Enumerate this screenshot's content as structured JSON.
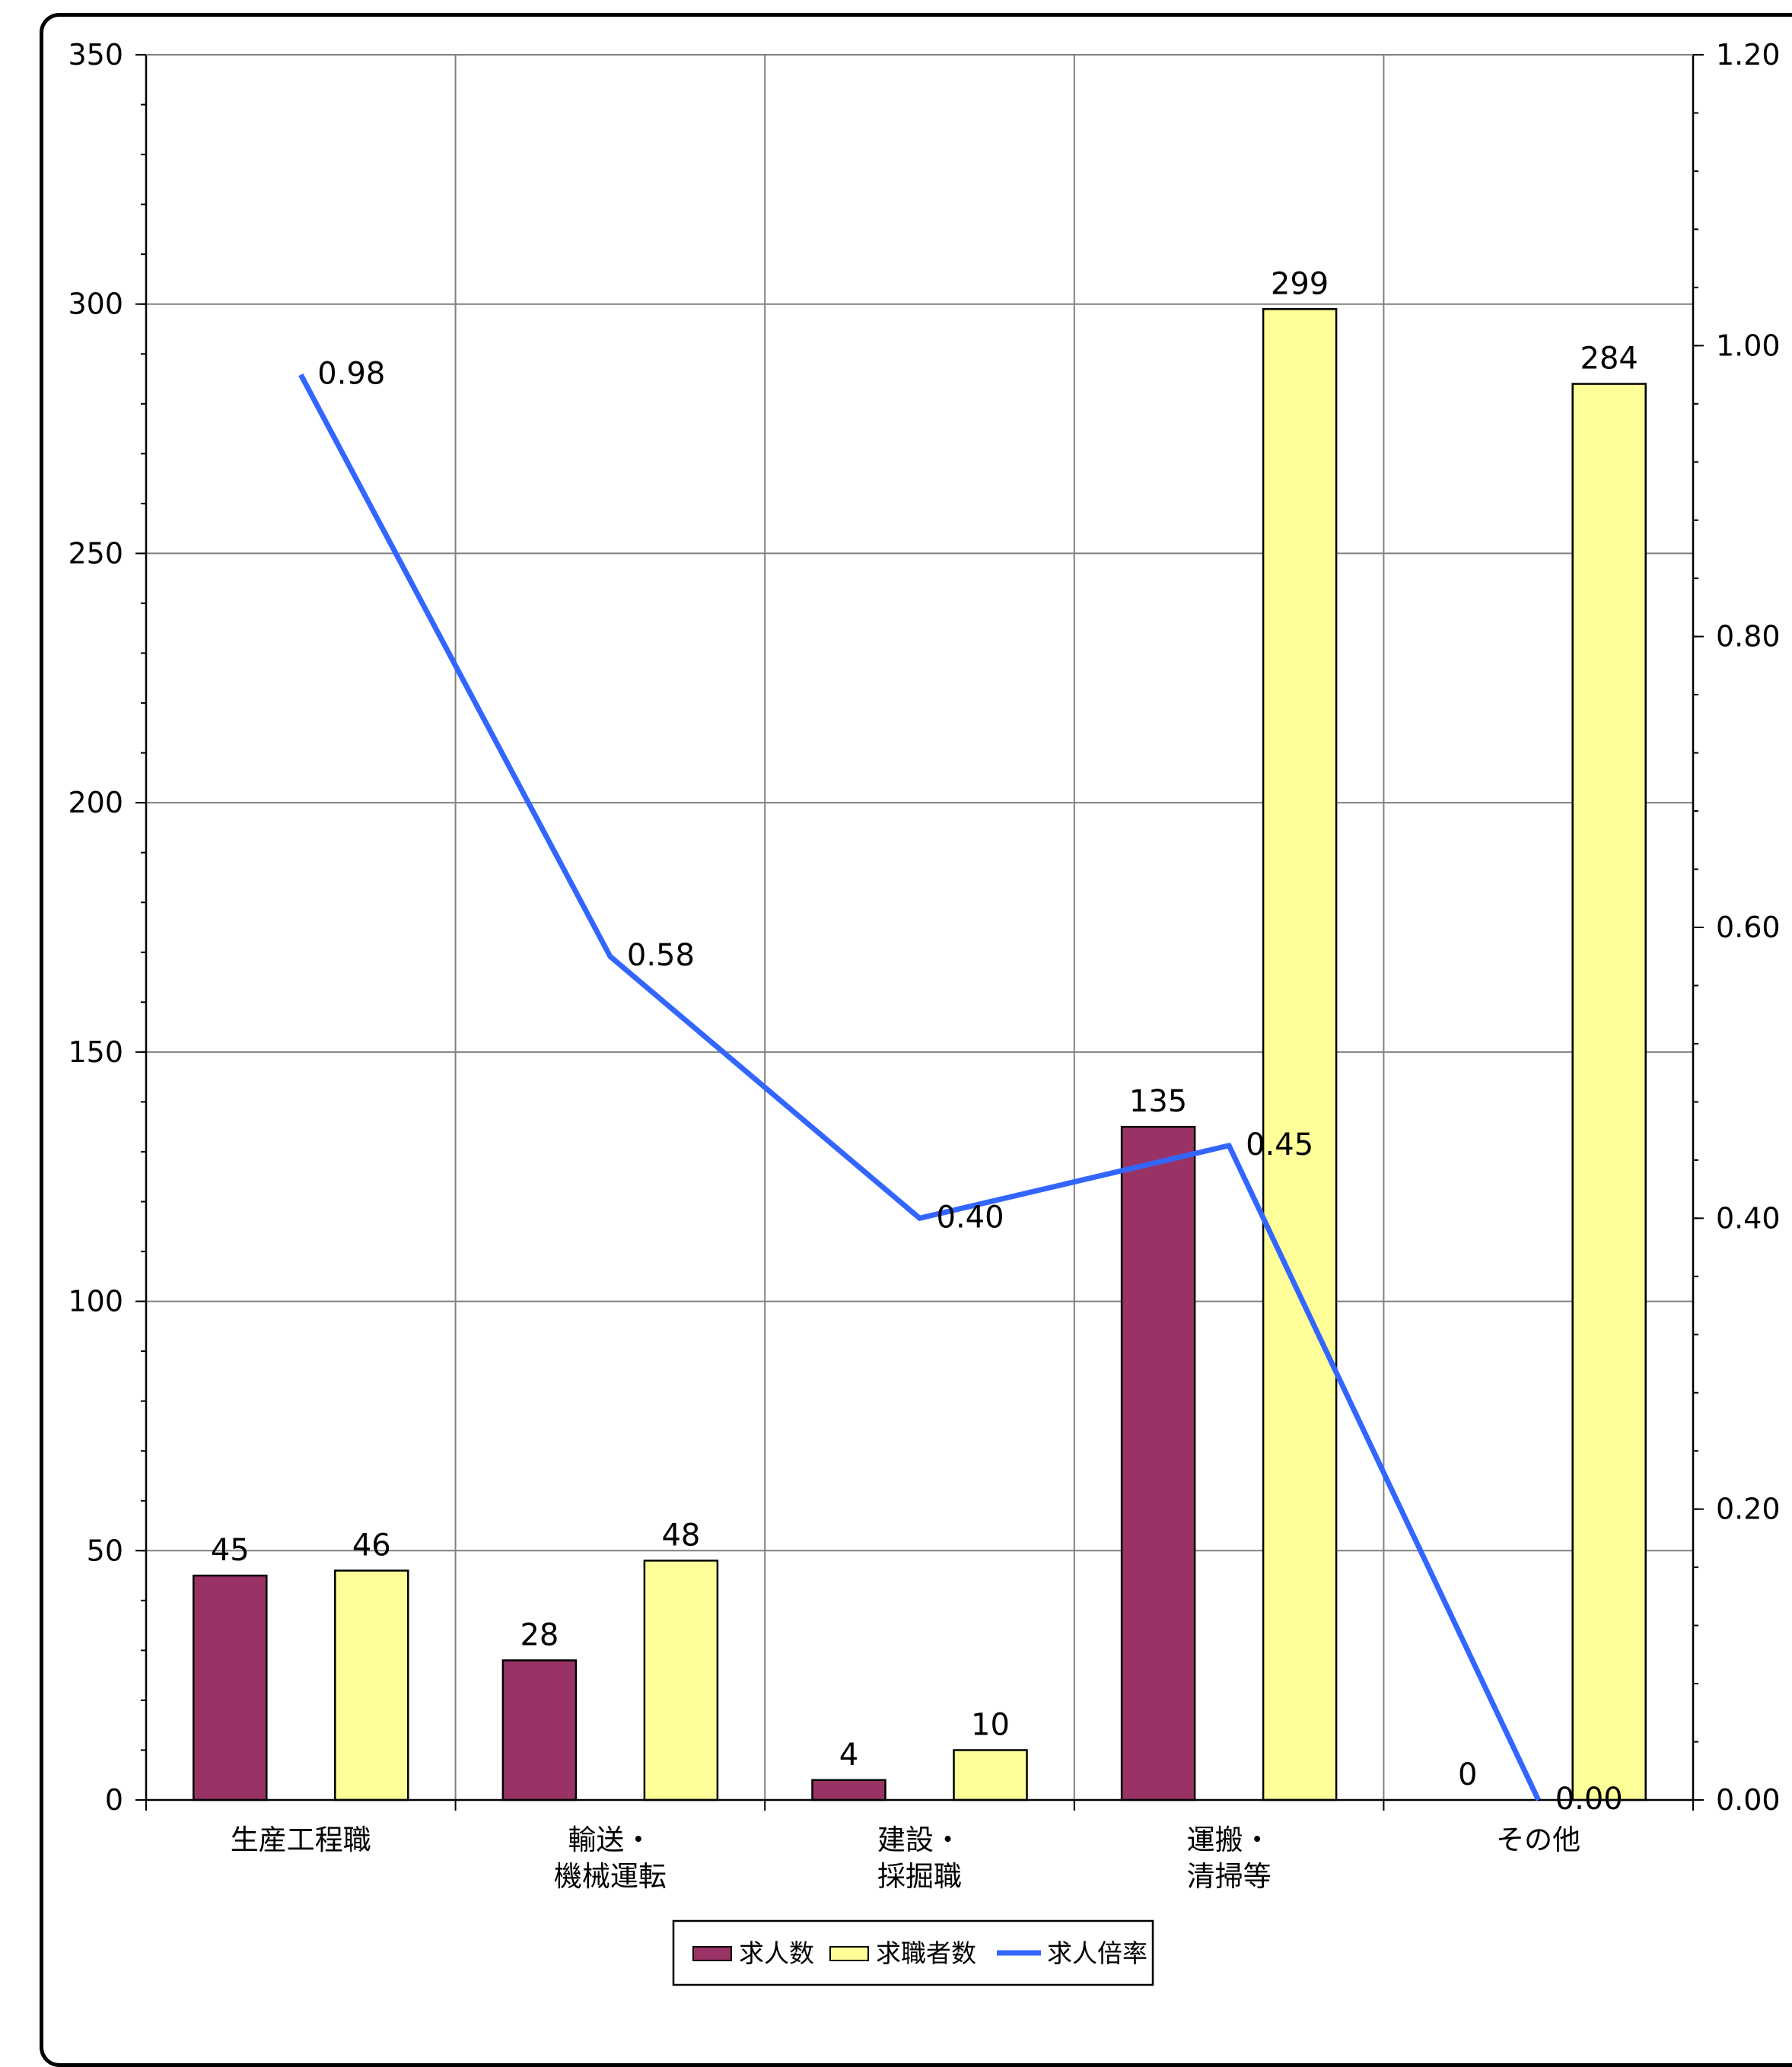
{
  "chart_data": {
    "type": "bar+line",
    "categories": [
      [
        "生産工程職"
      ],
      [
        "輸送・",
        "機械運転"
      ],
      [
        "建設・",
        "採掘職"
      ],
      [
        "運搬・",
        "清掃等"
      ],
      [
        "その他"
      ]
    ],
    "series": [
      {
        "name": "求人数",
        "type": "bar",
        "axis": "left",
        "color": "#993366",
        "values": [
          45,
          28,
          4,
          135,
          0
        ],
        "labels": [
          "45",
          "28",
          "4",
          "135",
          "0"
        ]
      },
      {
        "name": "求職者数",
        "type": "bar",
        "axis": "left",
        "color": "#FFFF99",
        "values": [
          46,
          48,
          10,
          299,
          284
        ],
        "labels": [
          "46",
          "48",
          "10",
          "299",
          "284"
        ]
      },
      {
        "name": "求人倍率",
        "type": "line",
        "axis": "right",
        "color": "#3366FF",
        "values": [
          0.98,
          0.58,
          0.4,
          0.45,
          0.0
        ],
        "labels": [
          "0.98",
          "0.58",
          "0.40",
          "0.45",
          "0.00"
        ]
      }
    ],
    "y_left": {
      "min": 0,
      "max": 350,
      "step": 50,
      "ticks": [
        "0",
        "50",
        "100",
        "150",
        "200",
        "250",
        "300",
        "350"
      ]
    },
    "y_right": {
      "min": 0,
      "max": 1.2,
      "step": 0.2,
      "ticks": [
        "0.00",
        "0.20",
        "0.40",
        "0.60",
        "0.80",
        "1.00",
        "1.20"
      ]
    },
    "grid": true,
    "legend": {
      "position": "bottom",
      "items": [
        "求人数",
        "求職者数",
        "求人倍率"
      ]
    }
  }
}
